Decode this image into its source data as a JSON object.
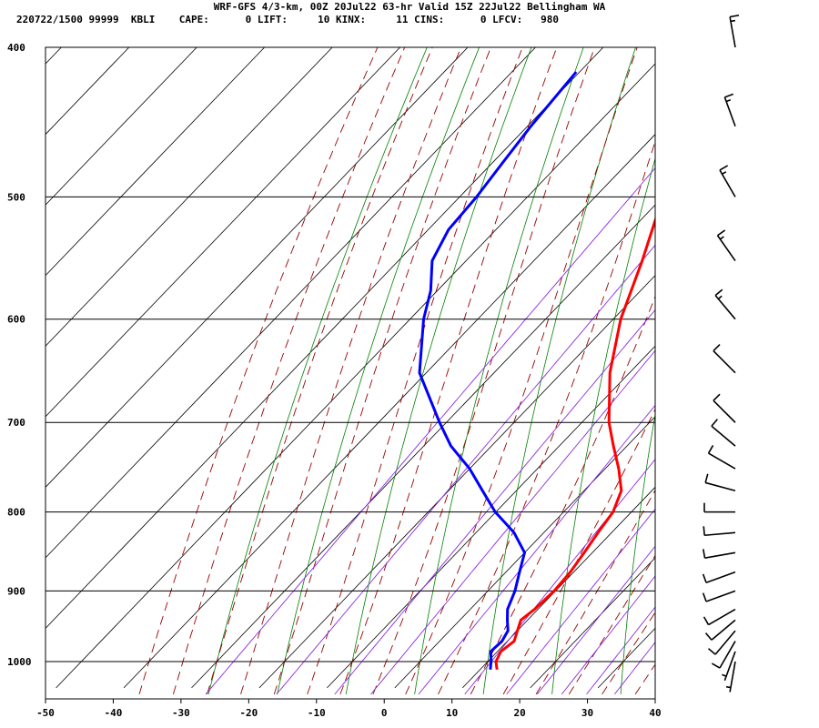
{
  "title_line1": "WRF-GFS 4/3-km, 00Z 20Jul22 63-hr Valid 15Z 22Jul22 Bellingham WA",
  "title_line2": "220722/1500 99999  KBLI    CAPE:      0 LIFT:     10 KINX:     11 CINS:      0 LFCV:   980",
  "chart_data": {
    "type": "line",
    "subtype": "skew-t log-p sounding",
    "xlim": [
      -50,
      40
    ],
    "ylim": [
      1040,
      400
    ],
    "y_scale": "log",
    "grid": true,
    "x_ticks": [
      "-50",
      "-40",
      "-30",
      "-20",
      "-10",
      "0",
      "10",
      "20",
      "30",
      "40"
    ],
    "y_ticks": [
      "400",
      "500",
      "600",
      "700",
      "800",
      "900",
      "1000"
    ],
    "colors": {
      "temperature": "#ff0000",
      "dewpoint": "#0000ff",
      "dry_adiabat": "#008000",
      "moist_adiabat": "#990000",
      "mixing_ratio": "#8a2be2",
      "grid": "#000000"
    },
    "series": [
      {
        "key": "temperature",
        "pressure": [
          1012,
          1000,
          985,
          970,
          955,
          940,
          925,
          900,
          875,
          850,
          825,
          800,
          775,
          750,
          725,
          700,
          650,
          600,
          550,
          500,
          475,
          450,
          425,
          415
        ],
        "values": [
          12.5,
          11.2,
          10.5,
          11.0,
          10.0,
          9.0,
          9.5,
          9.8,
          9.5,
          8.8,
          8.0,
          7.3,
          5.5,
          2.0,
          -2.0,
          -6.0,
          -12.9,
          -18.9,
          -24.0,
          -30.0,
          -33.2,
          -36.5,
          -38.7,
          -39.5
        ]
      },
      {
        "key": "dewpoint",
        "pressure": [
          1012,
          1000,
          985,
          970,
          955,
          940,
          925,
          900,
          875,
          850,
          825,
          800,
          775,
          750,
          725,
          700,
          650,
          600,
          575,
          550,
          525,
          500,
          475,
          450,
          415
        ],
        "values": [
          11.5,
          10.5,
          9.0,
          9.2,
          8.6,
          7.0,
          5.5,
          4.0,
          2.0,
          0.0,
          -4.4,
          -10.1,
          -15.0,
          -20.0,
          -26.0,
          -31.0,
          -41.0,
          -48.0,
          -51.0,
          -55.0,
          -57.0,
          -57.5,
          -58.5,
          -59.5,
          -60.5
        ]
      }
    ],
    "wind_barbs": {
      "pressure": [
        1000,
        985,
        970,
        955,
        940,
        925,
        900,
        875,
        850,
        825,
        800,
        775,
        750,
        725,
        700,
        650,
        600,
        550,
        500,
        450,
        400
      ],
      "direction_deg": [
        190,
        200,
        210,
        220,
        230,
        240,
        250,
        250,
        260,
        265,
        270,
        285,
        300,
        310,
        315,
        315,
        320,
        325,
        330,
        340,
        350
      ],
      "speed_kt": [
        5,
        5,
        10,
        10,
        10,
        10,
        10,
        10,
        10,
        10,
        10,
        10,
        10,
        10,
        10,
        10,
        15,
        15,
        15,
        15,
        15
      ]
    }
  }
}
